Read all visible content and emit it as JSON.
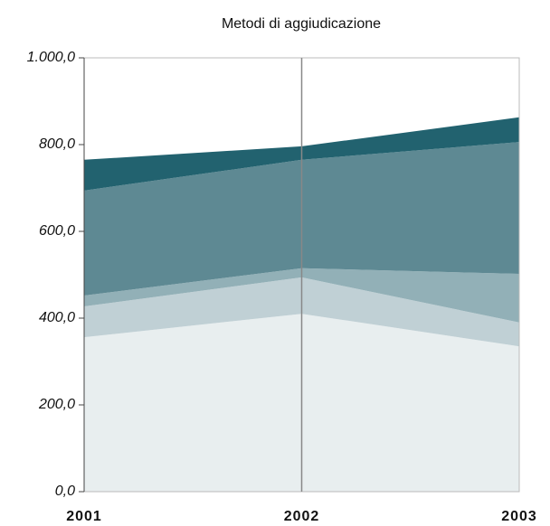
{
  "chart_data": {
    "type": "stacked-area",
    "title": "Metodi di aggiudicazione",
    "categories": [
      "2001",
      "2002",
      "2003"
    ],
    "series": [
      {
        "color": "#e8eeef",
        "values": [
          356,
          410,
          335
        ]
      },
      {
        "color": "#c0d0d5",
        "values": [
          71,
          84,
          55
        ]
      },
      {
        "color": "#92b0b7",
        "values": [
          25,
          21,
          112
        ]
      },
      {
        "color": "#5e8993",
        "values": [
          242,
          250,
          304
        ]
      },
      {
        "color": "#22626f",
        "values": [
          71,
          31,
          57
        ]
      }
    ],
    "ylim": [
      0,
      1000
    ],
    "yticks": [
      {
        "value": 0,
        "label": "0,0"
      },
      {
        "value": 200,
        "label": "200,0"
      },
      {
        "value": 400,
        "label": "400,0"
      },
      {
        "value": 600,
        "label": "600,0"
      },
      {
        "value": 800,
        "label": "800,0"
      },
      {
        "value": 1000,
        "label": "1.000,0"
      }
    ]
  }
}
